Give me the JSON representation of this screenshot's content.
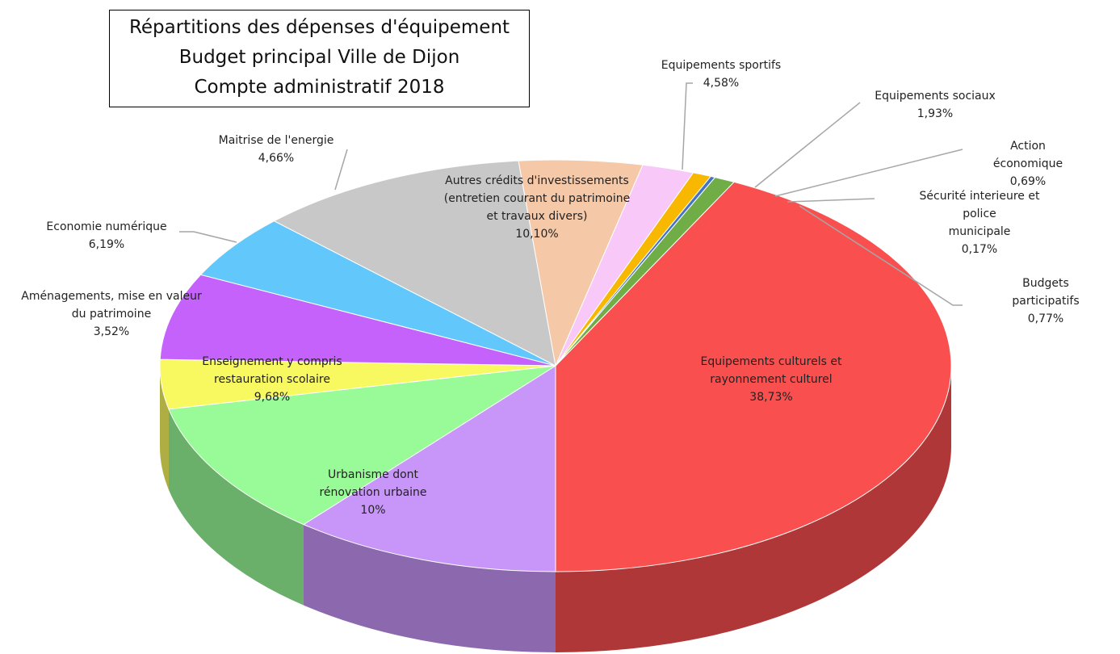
{
  "chart_data": {
    "type": "pie3d",
    "title": "Répartitions des dépenses d'équipement\nBudget principal Ville de Dijon\nCompte administratif 2018",
    "categories": [
      "Equipements culturels et\nrayonnement culturel",
      "Urbanisme dont\nrénovation urbaine",
      "Enseignement y compris\nrestauration scolaire",
      "Aménagements, mise en valeur\ndu patrimoine",
      "Economie numérique",
      "Maitrise  de l'energie",
      "Autres crédits d'investissements\n(entretien courant du patrimoine\net travaux divers)",
      "Equipements sportifs",
      "Equipements sociaux",
      "Action économique",
      "Sécurité interieure et police\nmunicipale",
      "Budgets participatifs"
    ],
    "values": [
      38.73,
      10,
      9.68,
      3.52,
      6.19,
      4.66,
      10.1,
      4.58,
      1.93,
      0.69,
      0.17,
      0.77
    ],
    "value_labels": [
      "38,73%",
      "10%",
      "9,68%",
      "3,52%",
      "6,19%",
      "4,66%",
      "10,10%",
      "4,58%",
      "1,93%",
      "0,69%",
      "0,17%",
      "0,77%"
    ],
    "colors": [
      "#fa4f4f",
      "#c896f8",
      "#98fb98",
      "#f8f860",
      "#c562fb",
      "#62c8fb",
      "#c8c8c8",
      "#f5c8a8",
      "#f8c8f8",
      "#f8b800",
      "#4472c4",
      "#70ad47"
    ]
  }
}
